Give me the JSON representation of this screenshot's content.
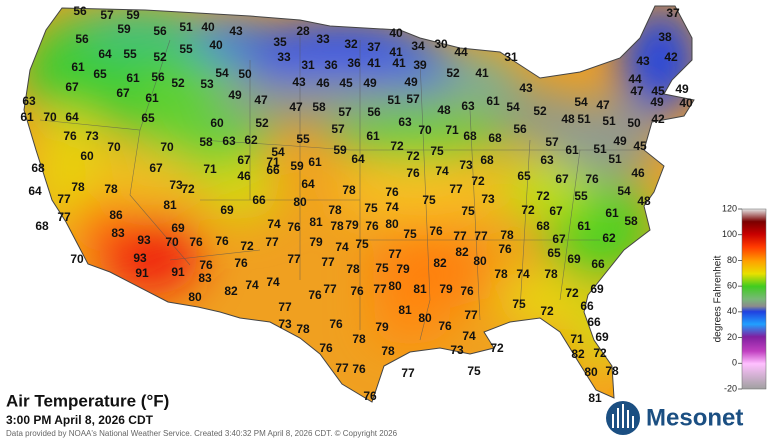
{
  "title": "Air Temperature (°F)",
  "subtitle": "3:00 PM April 8, 2026 CDT",
  "credit": "Data provided by NOAA's National Weather Service. Created 3:40:32 PM April 8, 2026 CDT. © Copyright 2026",
  "logo": "Mesonet",
  "colorbar": {
    "label": "degrees Fahrenheit",
    "ticks": [
      120,
      100,
      80,
      60,
      40,
      20,
      0,
      -20
    ]
  },
  "stations": [
    56,
    57,
    59,
    51,
    40,
    43,
    28,
    40,
    37,
    56,
    59,
    56,
    40,
    35,
    33,
    32,
    37,
    41,
    34,
    30,
    44,
    38,
    64,
    55,
    52,
    55,
    33,
    31,
    36,
    36,
    41,
    41,
    39,
    31,
    42,
    43,
    61,
    65,
    61,
    56,
    54,
    50,
    52,
    41,
    43,
    44,
    67,
    67,
    52,
    53,
    43,
    46,
    45,
    49,
    49,
    47,
    45,
    49,
    63,
    61,
    49,
    47,
    47,
    58,
    57,
    56,
    51,
    57,
    48,
    63,
    61,
    54,
    52,
    54,
    47,
    49,
    40,
    61,
    70,
    64,
    65,
    60,
    52,
    57,
    61,
    63,
    70,
    71,
    68,
    56,
    48,
    51,
    51,
    50,
    42,
    76,
    73,
    58,
    63,
    62,
    55,
    68,
    57,
    49,
    45,
    60,
    70,
    70,
    54,
    59,
    64,
    72,
    72,
    75,
    68,
    63,
    61,
    51,
    68,
    67,
    67,
    71,
    61,
    76,
    74,
    73,
    72,
    65,
    67,
    51,
    46,
    78,
    73,
    71,
    46,
    66,
    59,
    64,
    78,
    76,
    77,
    73,
    72,
    76,
    55,
    54,
    64,
    77,
    78,
    72,
    80,
    78,
    75,
    74,
    75,
    75,
    72,
    67,
    61,
    58,
    48,
    86,
    81,
    69,
    69,
    66,
    74,
    76,
    81,
    78,
    79,
    76,
    80,
    77,
    77,
    78,
    68,
    67,
    61,
    62,
    77,
    68,
    83,
    93,
    70,
    76,
    76,
    72,
    77,
    79,
    74,
    75,
    75,
    76,
    77,
    70,
    93,
    91,
    91,
    76,
    77,
    78,
    75,
    79,
    82,
    82,
    80,
    76,
    65,
    69,
    66,
    76,
    74,
    74,
    82,
    80,
    83,
    77,
    77,
    76,
    77,
    80,
    81,
    79,
    76,
    78,
    74,
    78,
    72,
    69,
    76,
    77,
    73,
    78,
    76,
    81,
    80,
    76,
    77,
    74,
    73,
    72,
    75,
    72,
    66,
    66,
    69,
    71,
    82,
    72,
    80,
    78,
    81,
    79,
    78,
    76,
    78,
    77,
    76,
    77,
    75,
    76
  ]
}
